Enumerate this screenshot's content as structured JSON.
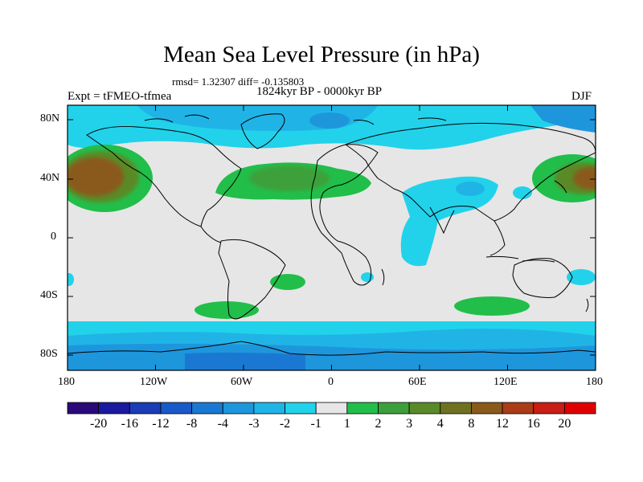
{
  "title": "Mean Sea Level Pressure (in hPa)",
  "stats_line": "rmsd= 1.32307 diff= -0.135803",
  "period": "1824kyr BP - 0000kyr BP",
  "experiment": "Expt = tFMEO-tfmea",
  "season": "DJF",
  "map": {
    "projection": "cylindrical-equidistant",
    "lon_range": [
      -180,
      180
    ],
    "lat_range": [
      -90,
      90
    ],
    "y_ticks": [
      "80N",
      "40N",
      "0",
      "40S",
      "80S"
    ],
    "x_ticks": [
      "180",
      "120W",
      "60W",
      "0",
      "60E",
      "120E",
      "180"
    ],
    "background_color": "#e6e6e6",
    "coastline_color": "#000000"
  },
  "colorbar": {
    "labels": [
      "-20",
      "-16",
      "-12",
      "-8",
      "-4",
      "-3",
      "-2",
      "-1",
      "1",
      "2",
      "3",
      "4",
      "8",
      "12",
      "16",
      "20"
    ],
    "colors": [
      "#2a0a7a",
      "#1a1aa0",
      "#1a3cb4",
      "#1a5ac8",
      "#1a78d2",
      "#1e96dc",
      "#20b4e6",
      "#22d2ea",
      "#e6e6e6",
      "#22be4a",
      "#3ca03a",
      "#5a8a28",
      "#6e7220",
      "#8a5a1c",
      "#aa3c18",
      "#c81e14",
      "#e00000"
    ]
  }
}
